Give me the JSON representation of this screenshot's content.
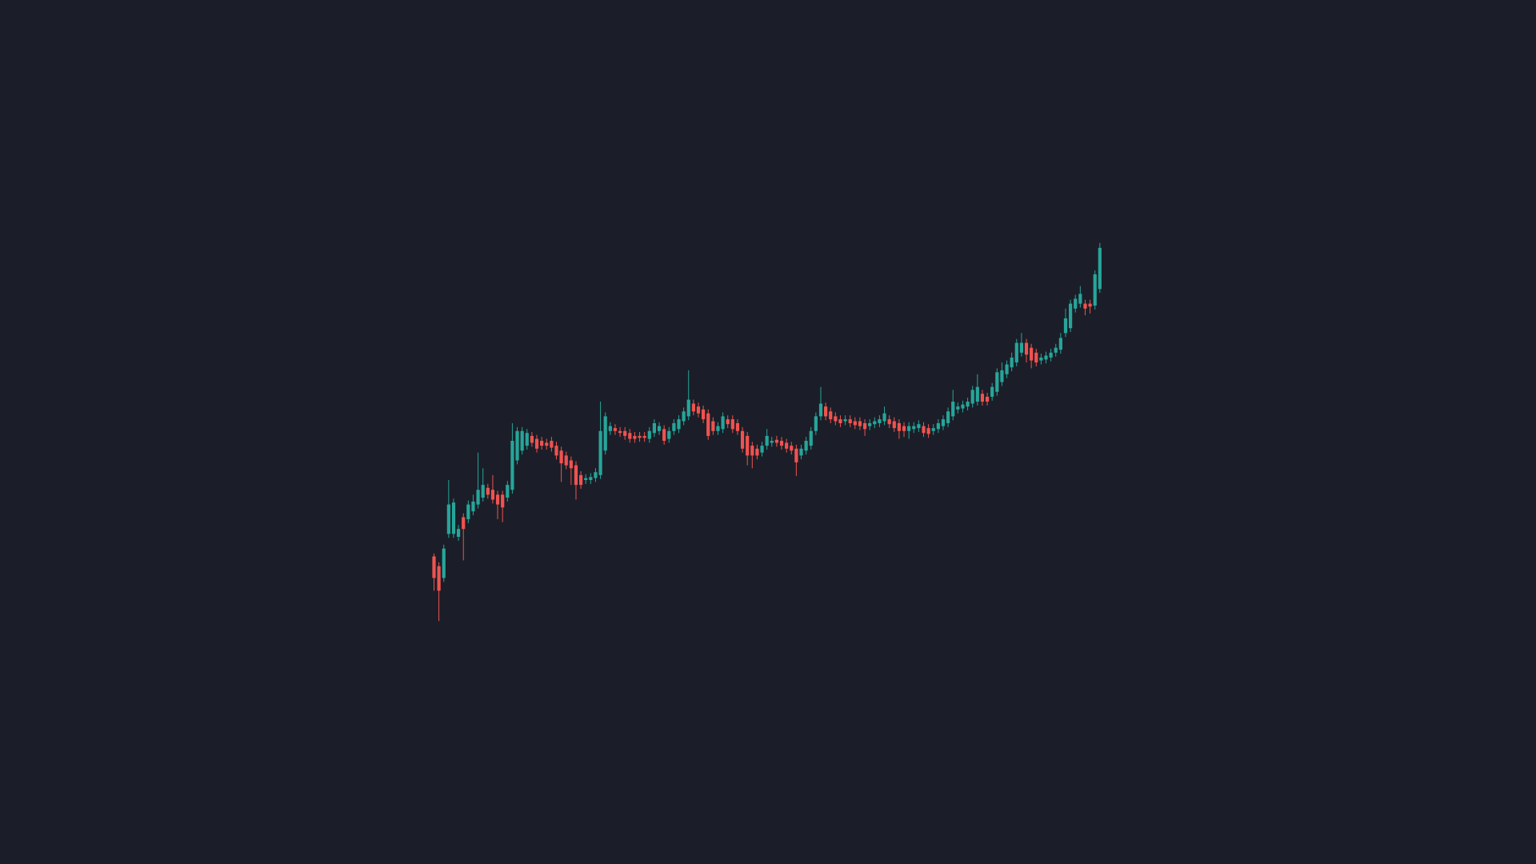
{
  "chart_data": {
    "type": "candlestick",
    "up_color": "#26a69a",
    "down_color": "#ef5350",
    "background": "#1b1e28",
    "ylim": [
      -182,
      700
    ],
    "open": [
      132,
      122,
      110,
      155,
      155,
      152,
      172,
      170,
      178,
      185,
      192,
      202,
      200,
      195,
      195,
      192,
      200,
      230,
      240,
      245,
      255,
      252,
      250,
      248,
      250,
      245,
      240,
      235,
      230,
      225,
      215,
      210,
      210,
      212,
      215,
      240,
      260,
      263,
      260,
      260,
      258,
      255,
      255,
      255,
      252,
      258,
      260,
      262,
      252,
      260,
      262,
      270,
      275,
      288,
      285,
      282,
      278,
      270,
      260,
      262,
      272,
      272,
      268,
      260,
      255,
      245,
      242,
      238,
      245,
      248,
      251,
      250,
      248,
      245,
      242,
      235,
      240,
      245,
      260,
      275,
      285,
      280,
      275,
      272,
      270,
      272,
      270,
      270,
      268,
      265,
      267,
      268,
      270,
      272,
      270,
      268,
      265,
      260,
      262,
      263,
      265,
      263,
      260,
      262,
      265,
      268,
      275,
      282,
      283,
      285,
      288,
      290,
      298,
      295,
      295,
      300,
      310,
      318,
      325,
      330,
      340,
      350,
      345,
      340,
      332,
      333,
      335,
      340,
      343,
      360,
      365,
      385,
      390,
      390,
      390,
      388,
      405
    ],
    "high": [
      135,
      126,
      144,
      210,
      191,
      164,
      176,
      189,
      195,
      238,
      222,
      206,
      215,
      199,
      199,
      209,
      268,
      264,
      264,
      262,
      259,
      256,
      254,
      252,
      254,
      249,
      244,
      239,
      234,
      229,
      219,
      216,
      217,
      222,
      290,
      279,
      269,
      267,
      264,
      264,
      262,
      259,
      259,
      259,
      264,
      272,
      269,
      266,
      264,
      272,
      276,
      284,
      322,
      292,
      289,
      286,
      282,
      274,
      269,
      279,
      276,
      276,
      272,
      264,
      259,
      249,
      246,
      249,
      262,
      254,
      255,
      254,
      252,
      249,
      246,
      246,
      254,
      264,
      279,
      305,
      289,
      284,
      279,
      276,
      276,
      276,
      274,
      274,
      272,
      272,
      274,
      276,
      285,
      276,
      274,
      272,
      269,
      269,
      269,
      271,
      269,
      267,
      267,
      272,
      276,
      284,
      302,
      289,
      291,
      294,
      306,
      318,
      302,
      299,
      309,
      324,
      330,
      332,
      340,
      354,
      360,
      354,
      349,
      344,
      339,
      341,
      344,
      349,
      360,
      385,
      394,
      399,
      408,
      394,
      394,
      424,
      452
    ],
    "low": [
      97,
      66,
      106,
      151,
      151,
      148,
      128,
      166,
      174,
      181,
      188,
      191,
      186,
      170,
      167,
      188,
      196,
      226,
      236,
      241,
      244,
      238,
      241,
      241,
      239,
      231,
      208,
      221,
      205,
      190,
      201,
      206,
      206,
      208,
      211,
      236,
      256,
      256,
      254,
      251,
      248,
      248,
      249,
      249,
      248,
      254,
      256,
      246,
      248,
      256,
      258,
      266,
      271,
      276,
      274,
      268,
      251,
      256,
      256,
      258,
      263,
      258,
      256,
      238,
      225,
      222,
      231,
      234,
      241,
      244,
      244,
      241,
      238,
      236,
      214,
      231,
      236,
      241,
      256,
      271,
      271,
      268,
      266,
      264,
      266,
      264,
      262,
      261,
      255,
      261,
      263,
      264,
      266,
      263,
      259,
      252,
      254,
      252,
      258,
      259,
      254,
      253,
      256,
      258,
      261,
      264,
      271,
      278,
      279,
      281,
      284,
      286,
      286,
      286,
      291,
      296,
      306,
      314,
      321,
      326,
      336,
      330,
      324,
      326,
      328,
      329,
      331,
      336,
      339,
      356,
      361,
      381,
      386,
      378,
      380,
      384,
      401
    ],
    "close": [
      110,
      97,
      140,
      185,
      187,
      160,
      160,
      185,
      188,
      200,
      205,
      195,
      190,
      185,
      182,
      205,
      250,
      260,
      260,
      258,
      248,
      242,
      245,
      245,
      243,
      235,
      227,
      225,
      222,
      205,
      205,
      212,
      213,
      218,
      260,
      275,
      265,
      260,
      258,
      255,
      252,
      252,
      253,
      253,
      260,
      268,
      265,
      250,
      260,
      268,
      272,
      280,
      292,
      280,
      278,
      272,
      255,
      260,
      265,
      275,
      267,
      262,
      260,
      242,
      235,
      235,
      235,
      245,
      255,
      250,
      248,
      245,
      242,
      240,
      228,
      242,
      250,
      260,
      275,
      288,
      275,
      272,
      270,
      268,
      272,
      268,
      266,
      265,
      262,
      268,
      270,
      272,
      278,
      267,
      263,
      260,
      260,
      265,
      265,
      267,
      258,
      257,
      263,
      268,
      272,
      280,
      290,
      285,
      287,
      290,
      302,
      305,
      290,
      290,
      305,
      320,
      322,
      328,
      335,
      350,
      350,
      338,
      332,
      330,
      335,
      337,
      340,
      345,
      355,
      375,
      390,
      395,
      400,
      385,
      387,
      420,
      447
    ]
  }
}
